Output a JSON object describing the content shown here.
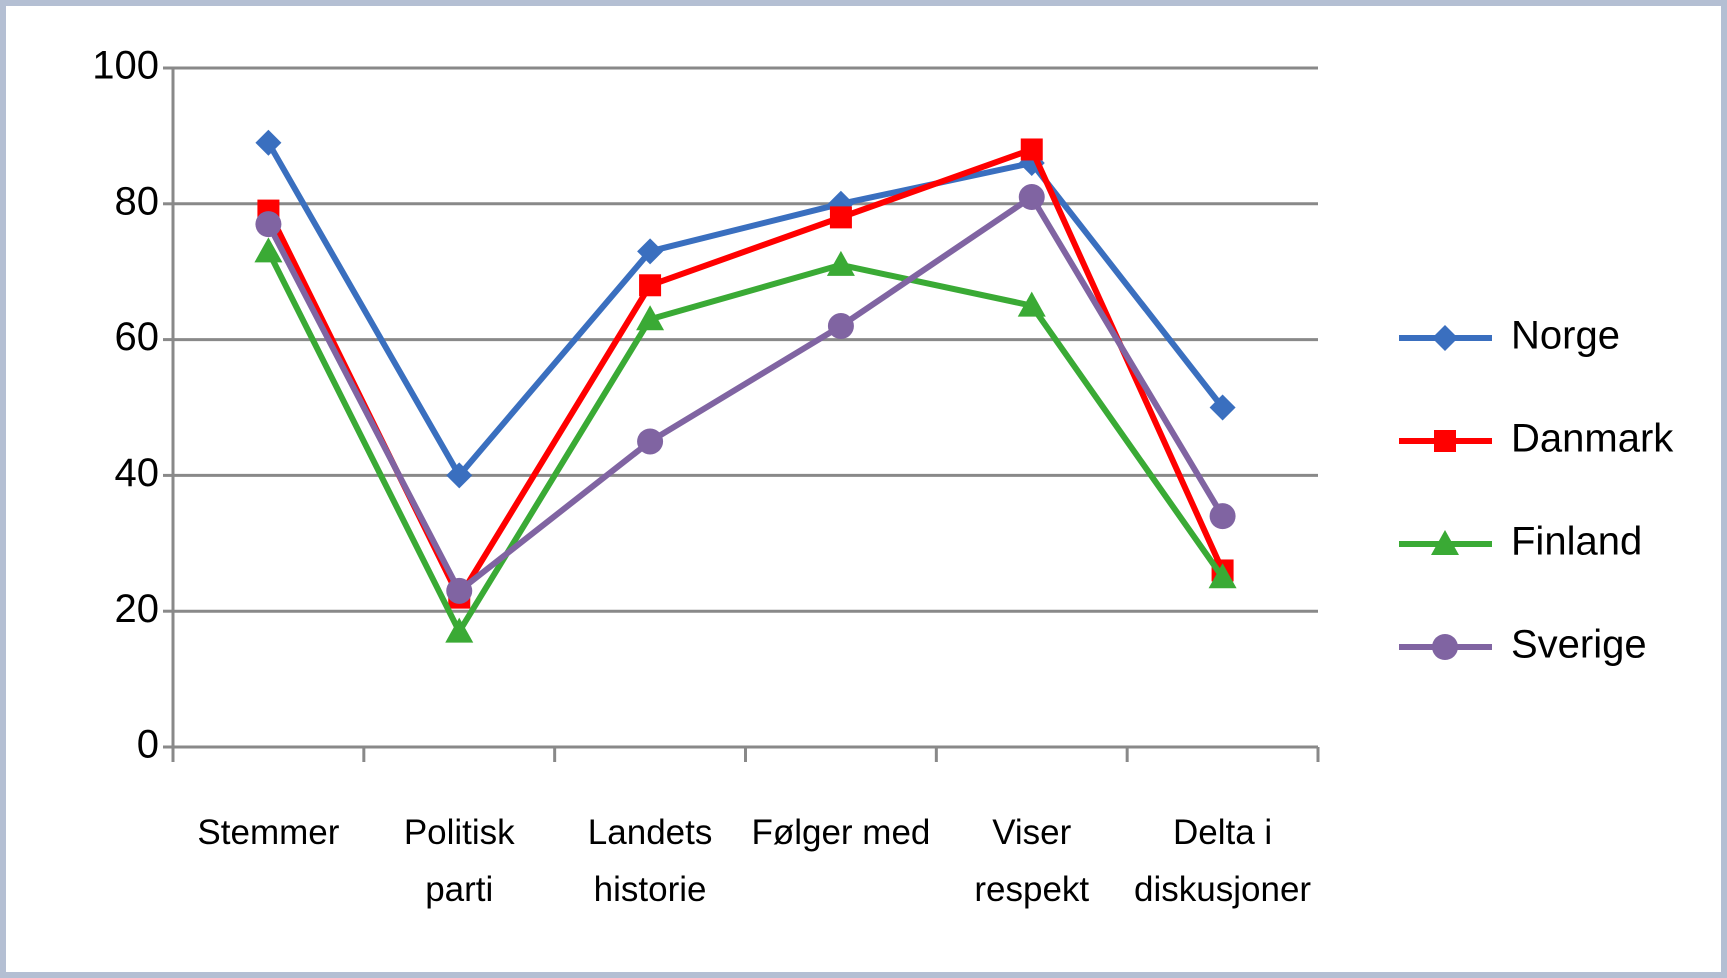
{
  "chart_data": {
    "type": "line",
    "categories": [
      [
        "Stemmer"
      ],
      [
        "Politisk",
        "parti"
      ],
      [
        "Landets",
        "historie"
      ],
      [
        "Følger med"
      ],
      [
        "Viser",
        "respekt"
      ],
      [
        "Delta i",
        "diskusjoner"
      ]
    ],
    "series": [
      {
        "name": "Norge",
        "color": "#3a6fbf",
        "marker": "diamond",
        "values": [
          89,
          40,
          73,
          80,
          86,
          50
        ]
      },
      {
        "name": "Danmark",
        "color": "#ff0000",
        "marker": "square",
        "values": [
          79,
          22,
          68,
          78,
          88,
          26
        ]
      },
      {
        "name": "Finland",
        "color": "#3aaa35",
        "marker": "triangle",
        "values": [
          73,
          17,
          63,
          71,
          65,
          25
        ]
      },
      {
        "name": "Sverige",
        "color": "#8064a2",
        "marker": "circle",
        "values": [
          77,
          23,
          45,
          62,
          81,
          34
        ]
      }
    ],
    "ylim": [
      0,
      100
    ],
    "yticks": [
      0,
      20,
      40,
      60,
      80,
      100
    ],
    "grid": true,
    "legend": "right"
  }
}
